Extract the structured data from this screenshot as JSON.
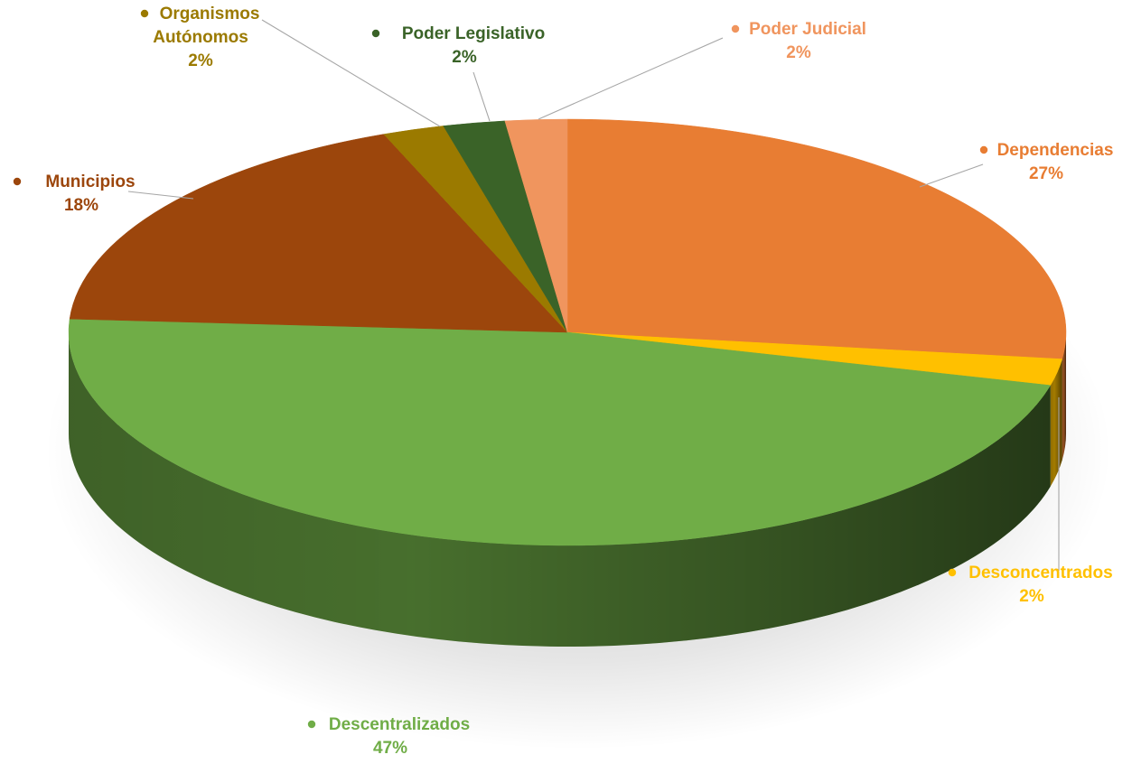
{
  "chart_data": {
    "type": "pie",
    "style": "3d",
    "title": "",
    "legend": "none",
    "data_labels": "category-and-percent",
    "slices": [
      {
        "name": "Dependencias",
        "value": 27,
        "label": "27%",
        "color": "#E87D33"
      },
      {
        "name": "Desconcentrados",
        "value": 2,
        "label": "2%",
        "color": "#FFC000"
      },
      {
        "name": "Descentralizados",
        "value": 47,
        "label": "47%",
        "color": "#70AD47"
      },
      {
        "name": "Municipios",
        "value": 18,
        "label": "18%",
        "color": "#9C460C"
      },
      {
        "name": "Organismos Autónomos",
        "value": 2,
        "label": "2%",
        "color": "#9B7A00",
        "name_lines": [
          "Organismos",
          "Autónomos"
        ]
      },
      {
        "name": "Poder Legislativo",
        "value": 2,
        "label": "2%",
        "color": "#3A6328"
      },
      {
        "name": "Poder Judicial",
        "value": 2,
        "label": "2%",
        "color": "#F0955E"
      }
    ]
  }
}
